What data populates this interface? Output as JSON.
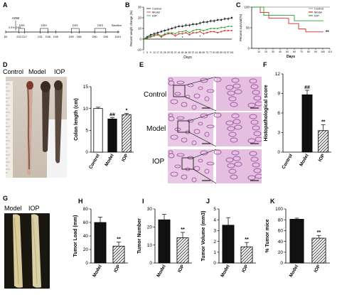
{
  "panel_labels": [
    "A",
    "B",
    "C",
    "D",
    "E",
    "F",
    "G",
    "H",
    "I",
    "J",
    "K"
  ],
  "panel_a": {
    "treatment_label": "AOM",
    "dss_label": "2.0% DSS",
    "stage_labels": [
      "DSS",
      "DSS",
      "DSS",
      "DSS",
      "Sacrifice"
    ],
    "day_labels": [
      "D0",
      "D12",
      "D17",
      "D31",
      "D38",
      "D45",
      "D59",
      "D66",
      "D80",
      "D90",
      "D101"
    ]
  },
  "panel_d": {
    "group_labels": [
      "Control",
      "Model",
      "IOP"
    ]
  },
  "panel_e": {
    "row_labels": [
      "Control",
      "Model",
      "IOP"
    ]
  },
  "panel_g": {
    "group_labels": [
      "Model",
      "IOP"
    ]
  },
  "colors": {
    "control": "#222222",
    "model": "#d62728",
    "iop": "#2ca02c",
    "bar_black": "#111111"
  },
  "chart_data": [
    {
      "id": "B",
      "type": "line",
      "xlabel": "Days",
      "ylabel": "Percent weight change (%)",
      "x": [
        1,
        5,
        9,
        13,
        17,
        21,
        25,
        29,
        33,
        37,
        41,
        45,
        49,
        53,
        57,
        61,
        65,
        69,
        73,
        77,
        81,
        85,
        89,
        93,
        97,
        101
      ],
      "x_ticks": [
        "1",
        "5",
        "9",
        "13",
        "17",
        "21",
        "25",
        "29",
        "33",
        "37",
        "41",
        "45",
        "49",
        "53",
        "57",
        "61",
        "65",
        "69",
        "73",
        "77",
        "81",
        "85",
        "89",
        "93",
        "97",
        "101"
      ],
      "ylim": [
        -10,
        30
      ],
      "y_ticks": [
        "30",
        "20",
        "10",
        "0",
        "-10"
      ],
      "legend": "top-left",
      "series": [
        {
          "name": "Control",
          "color": "#222222",
          "values": [
            0,
            2,
            4,
            5,
            6,
            7,
            8,
            9,
            10,
            11,
            12,
            12,
            13,
            13,
            14,
            14,
            15,
            16,
            16,
            17,
            17,
            18,
            18,
            19,
            19,
            20
          ]
        },
        {
          "name": "Model",
          "color": "#d62728",
          "values": [
            0,
            1,
            2,
            3,
            4,
            2,
            4,
            5,
            5,
            3,
            5,
            5,
            6,
            4,
            6,
            6,
            7,
            5,
            6,
            7,
            7,
            6,
            7,
            8,
            8,
            8
          ]
        },
        {
          "name": "IOP",
          "color": "#2ca02c",
          "values": [
            0,
            1,
            3,
            4,
            5,
            3,
            5,
            6,
            6,
            5,
            7,
            7,
            8,
            6,
            8,
            9,
            9,
            8,
            9,
            10,
            10,
            10,
            11,
            11,
            12,
            12
          ]
        }
      ],
      "annotations": [
        "*",
        "*"
      ]
    },
    {
      "id": "C",
      "type": "line",
      "xlabel": "Days",
      "ylabel": "Percent survival(%)",
      "x_ticks": [
        "10",
        "20",
        "30",
        "40",
        "50",
        "60",
        "70",
        "80",
        "90",
        "100",
        "110"
      ],
      "xlim": [
        0,
        110
      ],
      "ylim": [
        0,
        100
      ],
      "y_ticks": [
        "100",
        "50",
        "0"
      ],
      "legend": "top-right",
      "series": [
        {
          "name": "Control",
          "color": "#aaaaaa",
          "points": [
            [
              0,
              100
            ],
            [
              110,
              100
            ]
          ]
        },
        {
          "name": "Model",
          "color": "#d62728",
          "points": [
            [
              0,
              100
            ],
            [
              12,
              100
            ],
            [
              12,
              87
            ],
            [
              24,
              87
            ],
            [
              24,
              73
            ],
            [
              52,
              73
            ],
            [
              52,
              60
            ],
            [
              66,
              60
            ],
            [
              66,
              47
            ],
            [
              76,
              47
            ],
            [
              76,
              40
            ],
            [
              101,
              40
            ]
          ]
        },
        {
          "name": "IOP",
          "color": "#2ca02c",
          "points": [
            [
              0,
              100
            ],
            [
              17,
              100
            ],
            [
              17,
              80
            ],
            [
              60,
              80
            ],
            [
              60,
              67
            ],
            [
              101,
              67
            ]
          ]
        }
      ],
      "annotations": [
        "**"
      ]
    },
    {
      "id": "D",
      "type": "bar",
      "ylabel": "Colon length (cm)",
      "categories": [
        "Control",
        "Model",
        "IOP"
      ],
      "values": [
        10.0,
        7.6,
        8.6
      ],
      "errors": [
        0.3,
        0.3,
        0.3
      ],
      "fills": [
        "white",
        "black",
        "hatch"
      ],
      "ylim": [
        0,
        15
      ],
      "y_ticks": [
        "0",
        "5",
        "10",
        "15"
      ],
      "annotations": [
        "",
        "##",
        "*"
      ]
    },
    {
      "id": "F",
      "type": "bar",
      "ylabel": "Histopathological score",
      "categories": [
        "Control",
        "Model",
        "IOP"
      ],
      "values": [
        0,
        8.8,
        3.3
      ],
      "errors": [
        0,
        0.7,
        0.9
      ],
      "fills": [
        "white",
        "black",
        "hatch"
      ],
      "ylim": [
        0,
        12
      ],
      "y_ticks": [
        "0",
        "3",
        "6",
        "9",
        "12"
      ],
      "annotations": [
        "",
        "##",
        "**"
      ]
    },
    {
      "id": "H",
      "type": "bar",
      "ylabel": "Tumor Load (mm)",
      "categories": [
        "Model",
        "IOP"
      ],
      "values": [
        60,
        25
      ],
      "errors": [
        8,
        6
      ],
      "fills": [
        "black",
        "hatch"
      ],
      "ylim": [
        0,
        80
      ],
      "y_ticks": [
        "0",
        "20",
        "40",
        "60",
        "80"
      ],
      "annotations": [
        "",
        "**"
      ]
    },
    {
      "id": "I",
      "type": "bar",
      "ylabel": "Tumor Number",
      "categories": [
        "Model",
        "IOP"
      ],
      "values": [
        24,
        14
      ],
      "errors": [
        3,
        3
      ],
      "fills": [
        "black",
        "hatch"
      ],
      "ylim": [
        0,
        30
      ],
      "y_ticks": [
        "0",
        "10",
        "20",
        "30"
      ],
      "annotations": [
        "",
        "**"
      ]
    },
    {
      "id": "J",
      "type": "bar",
      "ylabel": "Tumor Volume (mm3)",
      "categories": [
        "Model",
        "IOP"
      ],
      "values": [
        3.5,
        1.5
      ],
      "errors": [
        0.7,
        0.4
      ],
      "fills": [
        "black",
        "hatch"
      ],
      "ylim": [
        0,
        5
      ],
      "y_ticks": [
        "0",
        "1",
        "2",
        "3",
        "4",
        "5"
      ],
      "annotations": [
        "",
        "**"
      ]
    },
    {
      "id": "K",
      "type": "bar",
      "ylabel": "% Tumor mice",
      "categories": [
        "Model",
        "IOP"
      ],
      "values": [
        81,
        46
      ],
      "errors": [
        2,
        5
      ],
      "fills": [
        "black",
        "hatch"
      ],
      "ylim": [
        0,
        100
      ],
      "y_ticks": [
        "0",
        "20",
        "40",
        "60",
        "80",
        "100"
      ],
      "annotations": [
        "",
        "**"
      ]
    }
  ]
}
